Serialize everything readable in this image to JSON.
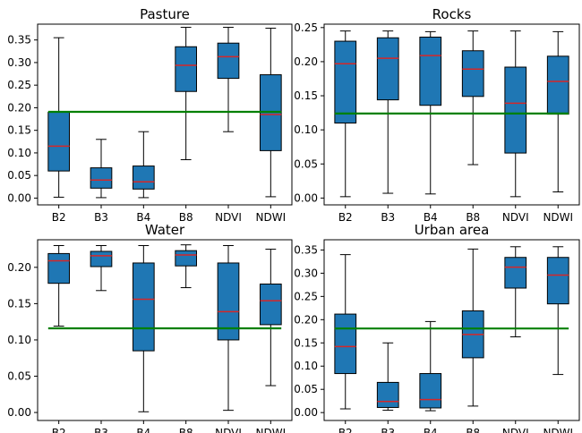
{
  "chart_data": [
    {
      "type": "box",
      "title": "Pasture",
      "categories": [
        "B2",
        "B3",
        "B4",
        "B8",
        "NDVI",
        "NDWI"
      ],
      "ylim": [
        -0.015,
        0.385
      ],
      "yticks": [
        0.0,
        0.05,
        0.1,
        0.15,
        0.2,
        0.25,
        0.3,
        0.35
      ],
      "ytick_labels": [
        "0.00",
        "0.05",
        "0.10",
        "0.15",
        "0.20",
        "0.25",
        "0.30",
        "0.35"
      ],
      "boxes": [
        {
          "min": 0.002,
          "q1": 0.06,
          "median": 0.115,
          "q3": 0.19,
          "max": 0.355
        },
        {
          "min": 0.001,
          "q1": 0.022,
          "median": 0.04,
          "q3": 0.067,
          "max": 0.13
        },
        {
          "min": 0.001,
          "q1": 0.02,
          "median": 0.036,
          "q3": 0.071,
          "max": 0.147
        },
        {
          "min": 0.085,
          "q1": 0.236,
          "median": 0.294,
          "q3": 0.335,
          "max": 0.378
        },
        {
          "min": 0.147,
          "q1": 0.265,
          "median": 0.313,
          "q3": 0.343,
          "max": 0.378
        },
        {
          "min": 0.003,
          "q1": 0.105,
          "median": 0.185,
          "q3": 0.273,
          "max": 0.376
        }
      ],
      "threshold": 0.191,
      "grid": false
    },
    {
      "type": "box",
      "title": "Rocks",
      "categories": [
        "B2",
        "B3",
        "B4",
        "B8",
        "NDVI",
        "NDWI"
      ],
      "ylim": [
        -0.01,
        0.255
      ],
      "yticks": [
        0.0,
        0.05,
        0.1,
        0.15,
        0.2,
        0.25
      ],
      "ytick_labels": [
        "0.00",
        "0.05",
        "0.10",
        "0.15",
        "0.20",
        "0.25"
      ],
      "boxes": [
        {
          "min": 0.002,
          "q1": 0.11,
          "median": 0.197,
          "q3": 0.23,
          "max": 0.245
        },
        {
          "min": 0.007,
          "q1": 0.144,
          "median": 0.205,
          "q3": 0.235,
          "max": 0.245
        },
        {
          "min": 0.006,
          "q1": 0.136,
          "median": 0.209,
          "q3": 0.236,
          "max": 0.244
        },
        {
          "min": 0.049,
          "q1": 0.149,
          "median": 0.189,
          "q3": 0.216,
          "max": 0.245
        },
        {
          "min": 0.002,
          "q1": 0.066,
          "median": 0.139,
          "q3": 0.192,
          "max": 0.245
        },
        {
          "min": 0.009,
          "q1": 0.123,
          "median": 0.171,
          "q3": 0.208,
          "max": 0.244
        }
      ],
      "threshold": 0.124,
      "grid": false
    },
    {
      "type": "box",
      "title": "Water",
      "categories": [
        "B2",
        "B3",
        "B4",
        "B8",
        "NDVI",
        "NDWI"
      ],
      "ylim": [
        -0.011,
        0.238
      ],
      "yticks": [
        0.0,
        0.05,
        0.1,
        0.15,
        0.2
      ],
      "ytick_labels": [
        "0.00",
        "0.05",
        "0.10",
        "0.15",
        "0.20"
      ],
      "boxes": [
        {
          "min": 0.119,
          "q1": 0.178,
          "median": 0.209,
          "q3": 0.219,
          "max": 0.23
        },
        {
          "min": 0.168,
          "q1": 0.201,
          "median": 0.216,
          "q3": 0.222,
          "max": 0.23
        },
        {
          "min": 0.001,
          "q1": 0.085,
          "median": 0.156,
          "q3": 0.206,
          "max": 0.23
        },
        {
          "min": 0.172,
          "q1": 0.202,
          "median": 0.217,
          "q3": 0.223,
          "max": 0.231
        },
        {
          "min": 0.003,
          "q1": 0.1,
          "median": 0.139,
          "q3": 0.206,
          "max": 0.23
        },
        {
          "min": 0.037,
          "q1": 0.121,
          "median": 0.154,
          "q3": 0.177,
          "max": 0.225
        }
      ],
      "threshold": 0.116,
      "grid": false
    },
    {
      "type": "box",
      "title": "Urban area",
      "categories": [
        "B2",
        "B3",
        "B4",
        "B8",
        "NDVI",
        "NDWI"
      ],
      "ylim": [
        -0.017,
        0.372
      ],
      "yticks": [
        0.0,
        0.05,
        0.1,
        0.15,
        0.2,
        0.25,
        0.3,
        0.35
      ],
      "ytick_labels": [
        "0.00",
        "0.05",
        "0.10",
        "0.15",
        "0.20",
        "0.25",
        "0.30",
        "0.35"
      ],
      "boxes": [
        {
          "min": 0.008,
          "q1": 0.084,
          "median": 0.142,
          "q3": 0.212,
          "max": 0.34
        },
        {
          "min": 0.005,
          "q1": 0.011,
          "median": 0.024,
          "q3": 0.065,
          "max": 0.15
        },
        {
          "min": 0.004,
          "q1": 0.01,
          "median": 0.028,
          "q3": 0.084,
          "max": 0.196
        },
        {
          "min": 0.014,
          "q1": 0.118,
          "median": 0.168,
          "q3": 0.219,
          "max": 0.352
        },
        {
          "min": 0.163,
          "q1": 0.268,
          "median": 0.313,
          "q3": 0.334,
          "max": 0.357
        },
        {
          "min": 0.082,
          "q1": 0.234,
          "median": 0.296,
          "q3": 0.334,
          "max": 0.357
        }
      ],
      "threshold": 0.181,
      "grid": false
    }
  ],
  "colors": {
    "box_fill": "#1f77b4",
    "median": "#d62728",
    "threshold": "#008000",
    "axes": "#000000",
    "whisker": "#000000"
  }
}
